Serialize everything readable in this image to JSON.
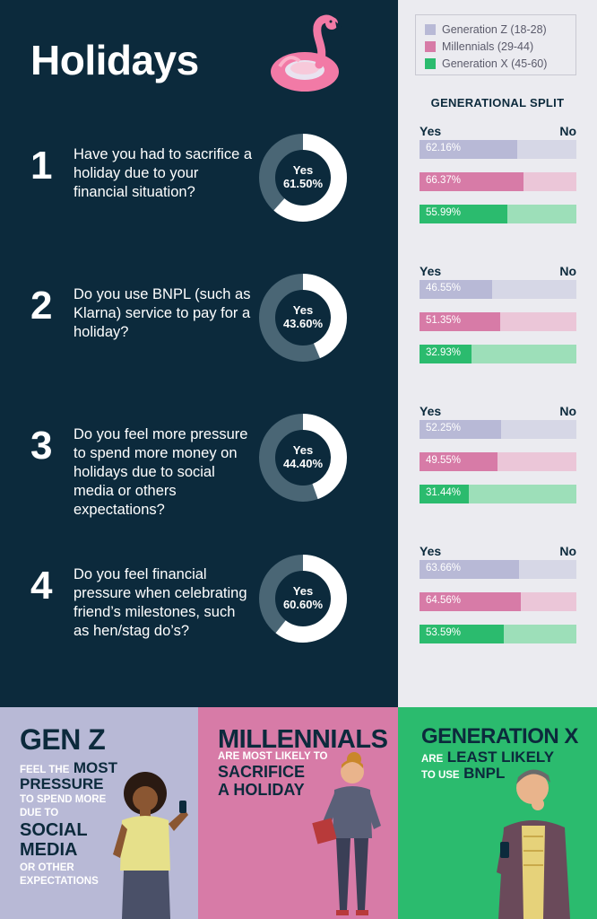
{
  "title": "Holidays",
  "legend": [
    {
      "label": "Generation Z (18-28)",
      "color": "#b8b9d6"
    },
    {
      "label": "Millennials (29-44)",
      "color": "#d77ba7"
    },
    {
      "label": "Generation X (45-60)",
      "color": "#2bbb6e"
    }
  ],
  "split_title": "GENERATIONAL SPLIT",
  "yes_label": "Yes",
  "no_label": "No",
  "questions": [
    {
      "num": "1",
      "text": "Have you had to sacrifice a holiday due to your financial situation?",
      "donut_label": "Yes",
      "donut_value": "61.50%",
      "pct": 61.5,
      "splits": [
        {
          "value": "62.16%",
          "pct": 62.16
        },
        {
          "value": "66.37%",
          "pct": 66.37
        },
        {
          "value": "55.99%",
          "pct": 55.99
        }
      ]
    },
    {
      "num": "2",
      "text": "Do you use BNPL (such as Klarna) service to pay for a holiday?",
      "donut_label": "Yes",
      "donut_value": "43.60%",
      "pct": 43.6,
      "splits": [
        {
          "value": "46.55%",
          "pct": 46.55
        },
        {
          "value": "51.35%",
          "pct": 51.35
        },
        {
          "value": "32.93%",
          "pct": 32.93
        }
      ]
    },
    {
      "num": "3",
      "text": "Do you feel more pressure to spend more money on holidays due to social media or others expectations?",
      "donut_label": "Yes",
      "donut_value": "44.40%",
      "pct": 44.4,
      "splits": [
        {
          "value": "52.25%",
          "pct": 52.25
        },
        {
          "value": "49.55%",
          "pct": 49.55
        },
        {
          "value": "31.44%",
          "pct": 31.44
        }
      ]
    },
    {
      "num": "4",
      "text": "Do you feel financial pressure when celebrating friend’s milestones, such as hen/stag do’s?",
      "donut_label": "Yes",
      "donut_value": "60.60%",
      "pct": 60.6,
      "splits": [
        {
          "value": "63.66%",
          "pct": 63.66
        },
        {
          "value": "64.56%",
          "pct": 64.56
        },
        {
          "value": "53.59%",
          "pct": 53.59
        }
      ]
    }
  ],
  "bar_colors": [
    {
      "fill": "#b8b9d6",
      "track": "#d6d7e6"
    },
    {
      "fill": "#d77ba7",
      "track": "#ebc6d8"
    },
    {
      "fill": "#2bbb6e",
      "track": "#9ddfb9"
    }
  ],
  "panels": {
    "genz": {
      "heading": "GEN Z",
      "l1a": "FEEL THE",
      "l1b": "MOST",
      "l2": "PRESSURE",
      "l3": "TO SPEND MORE",
      "l4": "DUE TO",
      "l5": "SOCIAL",
      "l6": "MEDIA",
      "l7": "OR OTHER",
      "l8": "EXPECTATIONS"
    },
    "millennials": {
      "heading": "MILLENNIALS",
      "l1": "ARE MOST LIKELY TO",
      "l2": "SACRIFICE",
      "l3": "A HOLIDAY"
    },
    "genx": {
      "heading": "GENERATION X",
      "l1a": "ARE",
      "l1b": "LEAST LIKELY",
      "l2a": "TO USE",
      "l2b": "BNPL"
    }
  }
}
